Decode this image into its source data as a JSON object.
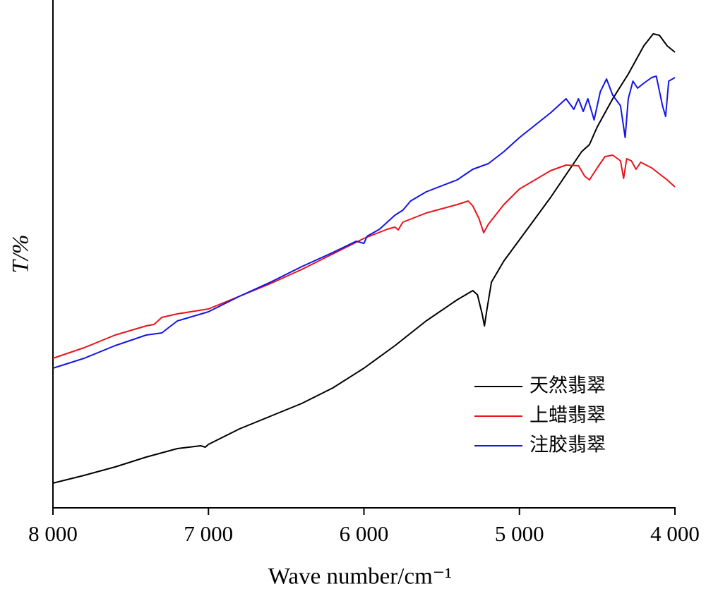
{
  "chart_data": {
    "type": "line",
    "xlabel": "Wave number/cm⁻¹",
    "ylabel": "T/%",
    "xlim": [
      8000,
      4000
    ],
    "xticks": [
      {
        "value": 8000,
        "label": "8 000"
      },
      {
        "value": 7000,
        "label": "7 000"
      },
      {
        "value": 6000,
        "label": "6 000"
      },
      {
        "value": 5000,
        "label": "5 000"
      },
      {
        "value": 4000,
        "label": "4 000"
      }
    ],
    "ylim": [
      0,
      720
    ],
    "legend": "lower right",
    "series": [
      {
        "name": "天然翡翠",
        "color": "#000000",
        "x": [
          8000,
          7800,
          7600,
          7400,
          7200,
          7050,
          7020,
          7000,
          6800,
          6600,
          6400,
          6200,
          6000,
          5800,
          5600,
          5400,
          5300,
          5270,
          5240,
          5225,
          5210,
          5180,
          5100,
          5000,
          4800,
          4600,
          4550,
          4500,
          4400,
          4300,
          4200,
          4140,
          4100,
          4050,
          4000
        ],
        "values": [
          35,
          46,
          58,
          72,
          84,
          88,
          86,
          90,
          112,
          130,
          148,
          170,
          198,
          230,
          265,
          295,
          308,
          302,
          275,
          258,
          280,
          320,
          350,
          380,
          440,
          505,
          515,
          540,
          580,
          615,
          655,
          672,
          670,
          655,
          646
        ]
      },
      {
        "name": "上蜡翡翠",
        "color": "#e8141c",
        "x": [
          8000,
          7800,
          7600,
          7400,
          7350,
          7300,
          7200,
          7000,
          6800,
          6600,
          6400,
          6200,
          6000,
          5850,
          5800,
          5780,
          5750,
          5600,
          5400,
          5330,
          5300,
          5260,
          5230,
          5200,
          5100,
          5000,
          4800,
          4700,
          4620,
          4580,
          4550,
          4500,
          4450,
          4400,
          4350,
          4330,
          4310,
          4280,
          4250,
          4220,
          4150,
          4050,
          4000
        ],
        "values": [
          212,
          227,
          245,
          258,
          260,
          270,
          275,
          282,
          300,
          318,
          338,
          360,
          382,
          395,
          398,
          394,
          405,
          418,
          430,
          435,
          428,
          410,
          390,
          402,
          430,
          452,
          478,
          486,
          485,
          470,
          465,
          482,
          498,
          500,
          492,
          467,
          495,
          492,
          480,
          490,
          482,
          465,
          455
        ]
      },
      {
        "name": "注胶翡翠",
        "color": "#1414e8",
        "x": [
          8000,
          7800,
          7600,
          7400,
          7300,
          7200,
          7000,
          6800,
          6600,
          6400,
          6200,
          6050,
          6000,
          5980,
          5900,
          5800,
          5750,
          5700,
          5600,
          5400,
          5300,
          5200,
          5100,
          5000,
          4800,
          4700,
          4650,
          4620,
          4590,
          4560,
          4520,
          4480,
          4440,
          4400,
          4350,
          4320,
          4300,
          4270,
          4240,
          4200,
          4150,
          4120,
          4080,
          4060,
          4040,
          4000
        ],
        "values": [
          198,
          212,
          230,
          245,
          248,
          265,
          278,
          300,
          320,
          342,
          362,
          378,
          375,
          385,
          395,
          415,
          422,
          435,
          448,
          465,
          480,
          488,
          505,
          525,
          560,
          580,
          565,
          580,
          562,
          580,
          550,
          590,
          608,
          585,
          570,
          525,
          580,
          605,
          595,
          602,
          610,
          612,
          570,
          555,
          605,
          610
        ]
      }
    ]
  }
}
